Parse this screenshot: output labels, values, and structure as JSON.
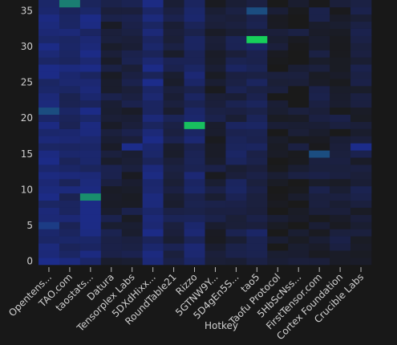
{
  "chart_data": {
    "type": "heatmap",
    "xlabel": "Hotkey",
    "ylabel": "",
    "x_categories": [
      "Opentens...",
      "TAO.com",
      "taostats...",
      "Datura",
      "Tensorplex Labs",
      "5DXdHixx...",
      "RoundTable21",
      "Rizzo",
      "5GTNW9Y...",
      "5D4gEn5S...",
      "tao5",
      "Taofu Protocol",
      "5HbScNss...",
      "FirstTensor.com",
      "Cortex Foundation",
      "Crucible Labs"
    ],
    "y_ticks": [
      0,
      5,
      10,
      15,
      20,
      25,
      30,
      35
    ],
    "y_range": [
      -0.5,
      36.5
    ],
    "grid": false,
    "color_low": "#1a1a1a",
    "color_mid": "#1c2c8a",
    "color_high": "#17d05a",
    "z_range": [
      0,
      1
    ],
    "highlights": [
      {
        "x": "TAO.com",
        "y": 36,
        "value": 0.75
      },
      {
        "x": "tao5",
        "y": 35,
        "value": 0.6
      },
      {
        "x": "tao5",
        "y": 31,
        "value": 1.0
      },
      {
        "x": "Rizzo",
        "y": 19,
        "value": 0.95
      },
      {
        "x": "taostats...",
        "y": 9,
        "value": 0.8
      },
      {
        "x": "Opentens...",
        "y": 21,
        "value": 0.6
      },
      {
        "x": "Opentens...",
        "y": 5,
        "value": 0.55
      },
      {
        "x": "Opentens...",
        "y": 0,
        "value": 0.5
      },
      {
        "x": "Opentens...",
        "y": 12,
        "value": 0.45
      },
      {
        "x": "Tensorplex Labs",
        "y": 16,
        "value": 0.5
      },
      {
        "x": "5DXdHixx...",
        "y": 25,
        "value": 0.5
      },
      {
        "x": "FirstTensor.com",
        "y": 15,
        "value": 0.6
      },
      {
        "x": "Crucible Labs",
        "y": 16,
        "value": 0.5
      }
    ]
  }
}
